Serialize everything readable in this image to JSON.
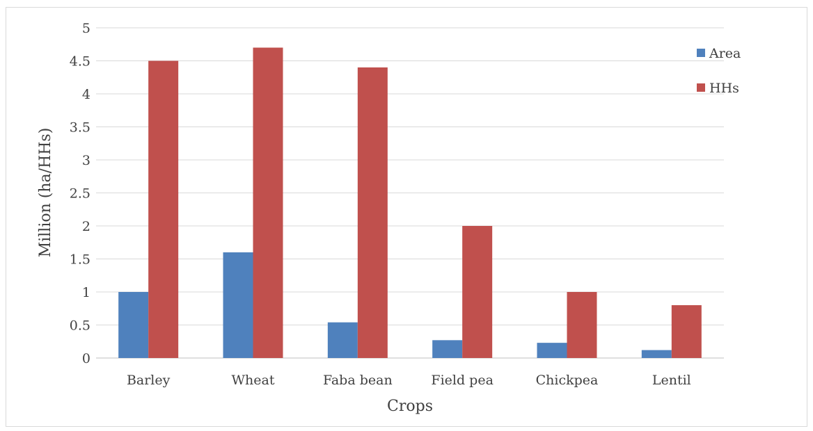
{
  "chart_data": {
    "type": "bar",
    "title": "",
    "xlabel": "Crops",
    "ylabel": "Million (ha/HHs)",
    "categories": [
      "Barley",
      "Wheat",
      "Faba bean",
      "Field pea",
      "Chickpea",
      "Lentil"
    ],
    "series": [
      {
        "name": "Area",
        "color": "#4f81bd",
        "values": [
          1.0,
          1.6,
          0.54,
          0.27,
          0.23,
          0.12
        ]
      },
      {
        "name": "HHs",
        "color": "#c0504d",
        "values": [
          4.5,
          4.7,
          4.4,
          2.0,
          1.0,
          0.8
        ]
      }
    ],
    "ylim": [
      0,
      5
    ],
    "yticks": [
      "0",
      "0.5",
      "1",
      "1.5",
      "2",
      "2.5",
      "3",
      "3.5",
      "4",
      "4.5",
      "5"
    ],
    "grid": true,
    "legend_position": "top-right"
  }
}
